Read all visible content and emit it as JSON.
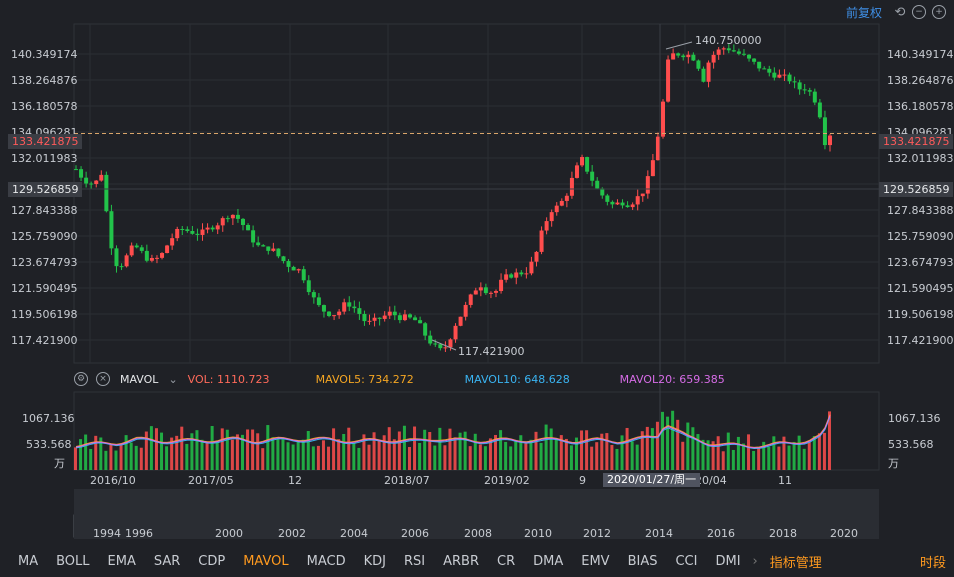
{
  "topbar": {
    "adjust_label": "前复权"
  },
  "price_axis": {
    "labels": [
      "140.349174",
      "138.264876",
      "136.180578",
      "134.096281",
      "132.011983",
      "129.526859",
      "127.843388",
      "125.759090",
      "123.674793",
      "121.590495",
      "119.506198",
      "117.421900"
    ],
    "current_price": "133.421875",
    "crosshair_price": "129.526859",
    "peak_label": "140.750000",
    "trough_label": "117.421900"
  },
  "indicator": {
    "name": "MAVOL",
    "vol_label": "VOL: 1110.723",
    "ma5_label": "MAVOL5: 734.272",
    "ma10_label": "MAVOL10: 648.628",
    "ma20_label": "MAVOL20: 659.385",
    "axis_top": "1067.136",
    "axis_mid": "533.568",
    "unit": "万"
  },
  "time_axis": {
    "labels": [
      "2016/10",
      "2017/05",
      "12",
      "2018/07",
      "2019/02",
      "9",
      "020/04",
      "11"
    ],
    "crosshair_date": "2020/01/27/周一"
  },
  "navigator": {
    "years": [
      "1994",
      "1996",
      "2000",
      "2002",
      "2004",
      "2006",
      "2008",
      "2010",
      "2012",
      "2014",
      "2016",
      "2018",
      "2020"
    ]
  },
  "tabs": [
    "MA",
    "BOLL",
    "EMA",
    "SAR",
    "CDP",
    "MAVOL",
    "MACD",
    "KDJ",
    "RSI",
    "ARBR",
    "CR",
    "DMA",
    "EMV",
    "BIAS",
    "CCI",
    "DMI"
  ],
  "tab_manage": "指标管理",
  "tab_period": "时段",
  "colors": {
    "up": "#ff4d4d",
    "down": "#22c34a",
    "ma5": "#f5a623",
    "ma10": "#3ab4f2",
    "ma20": "#d66ce6",
    "accent": "#ff9a1f"
  },
  "chart_data": {
    "type": "candlestick",
    "title": "",
    "x_labels": [
      "2016/10",
      "2017/05",
      "12",
      "2018/07",
      "2019/02",
      "9",
      "2020/04",
      "11"
    ],
    "price_range": [
      116.5,
      141.5
    ],
    "price_path": [
      [
        0,
        130.8
      ],
      [
        8,
        130.0
      ],
      [
        12,
        129.9
      ],
      [
        18,
        129.6
      ],
      [
        26,
        130.6
      ],
      [
        33,
        125.8
      ],
      [
        42,
        123.4
      ],
      [
        50,
        124.3
      ],
      [
        58,
        125.2
      ],
      [
        66,
        124.6
      ],
      [
        74,
        124.0
      ],
      [
        84,
        124.3
      ],
      [
        94,
        125.6
      ],
      [
        104,
        126.4
      ],
      [
        114,
        126.2
      ],
      [
        124,
        126.0
      ],
      [
        134,
        126.5
      ],
      [
        144,
        126.9
      ],
      [
        154,
        127.6
      ],
      [
        164,
        127.0
      ],
      [
        174,
        125.8
      ],
      [
        184,
        124.9
      ],
      [
        194,
        125.0
      ],
      [
        204,
        124.2
      ],
      [
        214,
        123.6
      ],
      [
        224,
        123.3
      ],
      [
        232,
        122.0
      ],
      [
        240,
        120.8
      ],
      [
        250,
        120.2
      ],
      [
        260,
        120.1
      ],
      [
        270,
        121.0
      ],
      [
        280,
        120.4
      ],
      [
        290,
        119.4
      ],
      [
        298,
        119.6
      ],
      [
        306,
        119.9
      ],
      [
        314,
        120.2
      ],
      [
        322,
        119.9
      ],
      [
        332,
        119.8
      ],
      [
        340,
        119.6
      ],
      [
        348,
        118.6
      ],
      [
        356,
        117.8
      ],
      [
        364,
        117.4
      ],
      [
        370,
        117.8
      ],
      [
        378,
        119.3
      ],
      [
        386,
        120.3
      ],
      [
        394,
        121.4
      ],
      [
        402,
        122.4
      ],
      [
        410,
        121.8
      ],
      [
        418,
        121.7
      ],
      [
        426,
        122.7
      ],
      [
        434,
        123.0
      ],
      [
        442,
        123.1
      ],
      [
        450,
        123.3
      ],
      [
        458,
        124.3
      ],
      [
        466,
        126.5
      ],
      [
        474,
        127.8
      ],
      [
        480,
        128.0
      ],
      [
        488,
        128.7
      ],
      [
        496,
        130.3
      ],
      [
        504,
        131.6
      ],
      [
        512,
        130.4
      ],
      [
        520,
        129.3
      ],
      [
        528,
        128.6
      ],
      [
        536,
        128.1
      ],
      [
        544,
        128.4
      ],
      [
        552,
        128.2
      ],
      [
        560,
        128.7
      ],
      [
        568,
        129.4
      ],
      [
        576,
        131.6
      ],
      [
        582,
        133.9
      ],
      [
        586,
        136.0
      ],
      [
        590,
        138.6
      ],
      [
        596,
        139.3
      ],
      [
        604,
        139.3
      ],
      [
        612,
        139.2
      ],
      [
        618,
        138.9
      ],
      [
        626,
        137.4
      ],
      [
        632,
        139.0
      ],
      [
        640,
        139.5
      ],
      [
        648,
        139.8
      ],
      [
        656,
        139.5
      ],
      [
        664,
        139.2
      ],
      [
        672,
        138.8
      ],
      [
        680,
        138.4
      ],
      [
        688,
        138.0
      ],
      [
        696,
        137.8
      ],
      [
        704,
        137.6
      ],
      [
        712,
        137.4
      ],
      [
        720,
        136.7
      ],
      [
        728,
        136.8
      ],
      [
        736,
        136.1
      ],
      [
        742,
        134.8
      ],
      [
        748,
        132.4
      ],
      [
        752,
        133.4
      ]
    ],
    "volume_path": [
      [
        0,
        520
      ],
      [
        20,
        540
      ],
      [
        40,
        560
      ],
      [
        60,
        640
      ],
      [
        80,
        610
      ],
      [
        100,
        600
      ],
      [
        120,
        610
      ],
      [
        140,
        620
      ],
      [
        160,
        640
      ],
      [
        180,
        600
      ],
      [
        200,
        630
      ],
      [
        220,
        640
      ],
      [
        240,
        640
      ],
      [
        260,
        620
      ],
      [
        280,
        600
      ],
      [
        300,
        610
      ],
      [
        320,
        620
      ],
      [
        340,
        600
      ],
      [
        360,
        650
      ],
      [
        380,
        620
      ],
      [
        400,
        600
      ],
      [
        420,
        630
      ],
      [
        440,
        600
      ],
      [
        460,
        640
      ],
      [
        480,
        620
      ],
      [
        500,
        600
      ],
      [
        520,
        620
      ],
      [
        540,
        600
      ],
      [
        560,
        640
      ],
      [
        580,
        700
      ],
      [
        588,
        980
      ],
      [
        596,
        880
      ],
      [
        610,
        680
      ],
      [
        630,
        560
      ],
      [
        650,
        520
      ],
      [
        670,
        500
      ],
      [
        690,
        510
      ],
      [
        710,
        560
      ],
      [
        730,
        610
      ],
      [
        745,
        720
      ],
      [
        752,
        1110.7
      ]
    ],
    "vol_max": 1600,
    "ma5": 734.272,
    "ma10": 648.628,
    "ma20": 659.385,
    "price_labels_left": [
      "140.349174",
      "138.264876",
      "136.180578",
      "134.096281",
      "132.011983",
      "129.526859",
      "127.843388",
      "125.759090",
      "123.674793",
      "121.590495",
      "119.506198",
      "117.421900"
    ],
    "last_price": 133.421875,
    "high": 140.75,
    "low": 117.4219
  }
}
